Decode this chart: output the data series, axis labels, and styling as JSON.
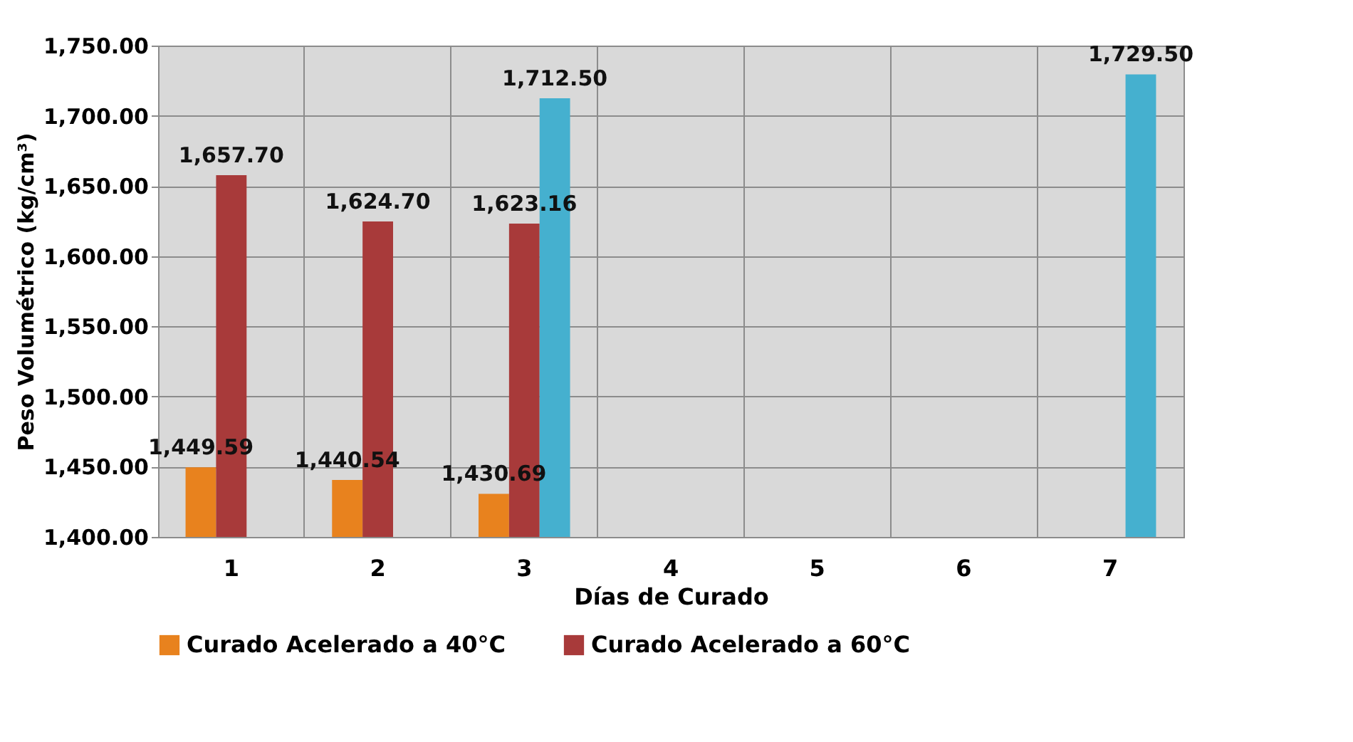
{
  "chart_data": {
    "type": "bar",
    "xlabel": "Días de Curado",
    "ylabel": "Peso Volumétrico (kg/cm³)",
    "categories": [
      "1",
      "2",
      "3",
      "4",
      "5",
      "6",
      "7"
    ],
    "series": [
      {
        "name": "Curado Acelerado a 40°C",
        "color": "#e8821e",
        "values": [
          1449.59,
          1440.54,
          1430.69,
          null,
          null,
          null,
          null
        ],
        "value_labels": [
          "1,449.59",
          "1,440.54",
          "1,430.69",
          null,
          null,
          null,
          null
        ]
      },
      {
        "name": "Curado Acelerado a 60°C",
        "color": "#a83a3a",
        "values": [
          1657.7,
          1624.7,
          1623.16,
          null,
          null,
          null,
          null
        ],
        "value_labels": [
          "1,657.70",
          "1,624.70",
          "1,623.16",
          null,
          null,
          null,
          null
        ]
      },
      {
        "color": "#45b0cf",
        "values": [
          null,
          null,
          1712.5,
          null,
          null,
          null,
          1729.5
        ],
        "value_labels": [
          null,
          null,
          "1,712.50",
          null,
          null,
          null,
          "1,729.50"
        ]
      }
    ],
    "ylim": [
      1400,
      1750
    ],
    "yticks": [
      {
        "value": 1400,
        "label": "1,400.00"
      },
      {
        "value": 1450,
        "label": "1,450.00"
      },
      {
        "value": 1500,
        "label": "1,500.00"
      },
      {
        "value": 1550,
        "label": "1,550.00"
      },
      {
        "value": 1600,
        "label": "1,600.00"
      },
      {
        "value": 1650,
        "label": "1,650.00"
      },
      {
        "value": 1700,
        "label": "1,700.00"
      },
      {
        "value": 1750,
        "label": "1,750.00"
      }
    ],
    "grid": true,
    "legend": "bottom"
  }
}
